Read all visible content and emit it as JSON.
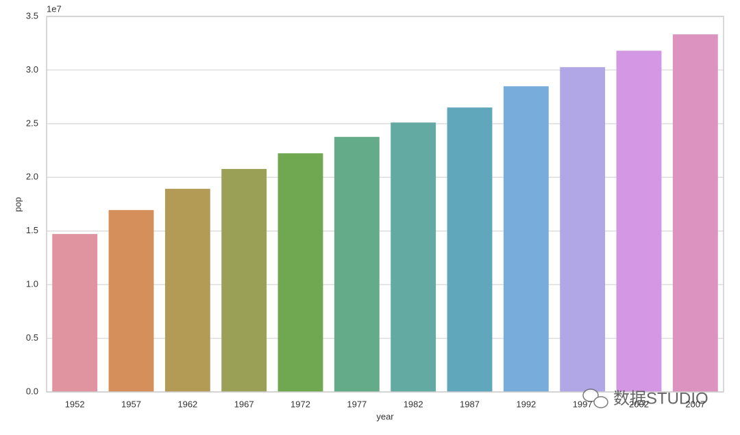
{
  "chart_data": {
    "type": "bar",
    "x_label": "year",
    "y_label": "pop",
    "y_offset_label": "1e7",
    "watermark": "数据STUDIO",
    "categories": [
      "1952",
      "1957",
      "1962",
      "1967",
      "1972",
      "1977",
      "1982",
      "1987",
      "1992",
      "1997",
      "2002",
      "2007"
    ],
    "values": [
      1.472,
      1.695,
      1.893,
      2.078,
      2.224,
      2.377,
      2.511,
      2.651,
      2.849,
      3.027,
      3.18,
      3.333
    ],
    "colors": [
      "#e0949f",
      "#d58f5b",
      "#b39a55",
      "#9aa055",
      "#6fa850",
      "#63ab89",
      "#63aaa3",
      "#61a7bc",
      "#78acdb",
      "#b1a7e6",
      "#d497e3",
      "#dc93c0"
    ],
    "ylim": [
      0,
      3.5
    ],
    "yticks": [
      {
        "value": 0,
        "label": "0.0"
      },
      0.5,
      {
        "value": 1,
        "label": "1.0"
      },
      1.5,
      {
        "value": 2,
        "label": "2.0"
      },
      2.5,
      {
        "value": 3,
        "label": "3.0"
      },
      3.5
    ],
    "grid": true
  }
}
